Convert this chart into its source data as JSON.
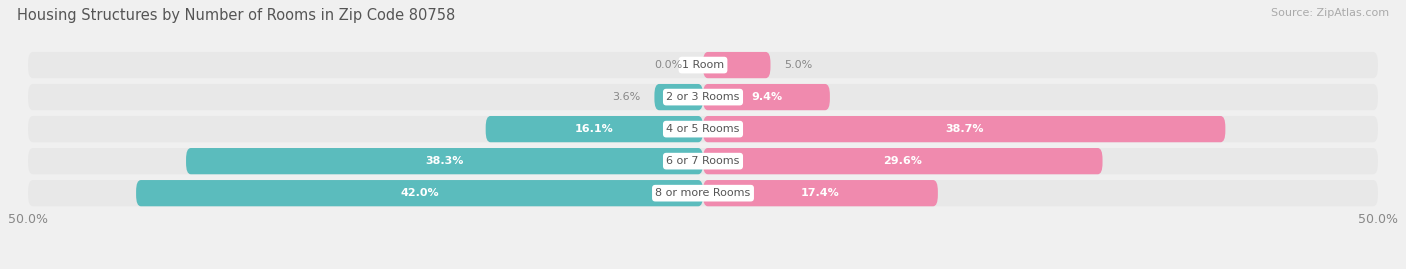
{
  "title": "Housing Structures by Number of Rooms in Zip Code 80758",
  "source": "Source: ZipAtlas.com",
  "categories": [
    "1 Room",
    "2 or 3 Rooms",
    "4 or 5 Rooms",
    "6 or 7 Rooms",
    "8 or more Rooms"
  ],
  "owner_values": [
    0.0,
    3.6,
    16.1,
    38.3,
    42.0
  ],
  "renter_values": [
    5.0,
    9.4,
    38.7,
    29.6,
    17.4
  ],
  "owner_color": "#5bbcbd",
  "renter_color": "#f08aae",
  "background_color": "#f0f0f0",
  "bar_background": "#e0e0e0",
  "row_background": "#e8e8e8",
  "axis_limit": 50.0,
  "bar_height": 0.82
}
